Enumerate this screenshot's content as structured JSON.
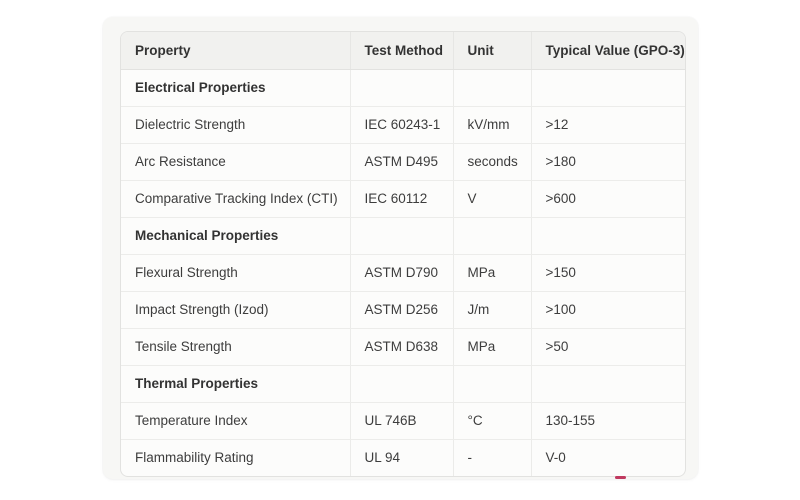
{
  "table": {
    "columns": [
      {
        "id": "property",
        "label": "Property"
      },
      {
        "id": "test_method",
        "label": "Test Method"
      },
      {
        "id": "unit",
        "label": "Unit"
      },
      {
        "id": "value",
        "label": "Typical Value (GPO-3)"
      }
    ],
    "rows": [
      {
        "type": "section",
        "property": "Electrical Properties",
        "test_method": "",
        "unit": "",
        "value": ""
      },
      {
        "type": "data",
        "property": "Dielectric Strength",
        "test_method": "IEC 60243-1",
        "unit": "kV/mm",
        "value": ">12"
      },
      {
        "type": "data",
        "property": "Arc Resistance",
        "test_method": "ASTM D495",
        "unit": "seconds",
        "value": ">180"
      },
      {
        "type": "data",
        "property": "Comparative Tracking Index (CTI)",
        "test_method": "IEC 60112",
        "unit": "V",
        "value": ">600"
      },
      {
        "type": "section",
        "property": "Mechanical Properties",
        "test_method": "",
        "unit": "",
        "value": ""
      },
      {
        "type": "data",
        "property": "Flexural Strength",
        "test_method": "ASTM D790",
        "unit": "MPa",
        "value": ">150"
      },
      {
        "type": "data",
        "property": "Impact Strength (Izod)",
        "test_method": "ASTM D256",
        "unit": "J/m",
        "value": ">100"
      },
      {
        "type": "data",
        "property": "Tensile Strength",
        "test_method": "ASTM D638",
        "unit": "MPa",
        "value": ">50"
      },
      {
        "type": "section",
        "property": "Thermal Properties",
        "test_method": "",
        "unit": "",
        "value": ""
      },
      {
        "type": "data",
        "property": "Temperature Index",
        "test_method": "UL 746B",
        "unit": "°C",
        "value": "130-155"
      },
      {
        "type": "data",
        "property": "Flammability Rating",
        "test_method": "UL 94",
        "unit": "-",
        "value": "V-0"
      }
    ]
  },
  "colors": {
    "page_bg": "#ffffff",
    "card_bg": "#f7f7f5",
    "table_bg": "#fcfcfb",
    "header_bg": "#f1f1ef",
    "outer_border": "#e2e2e0",
    "row_border": "#ececea",
    "text": "#3d3d3d",
    "bold_text": "#333333",
    "artifact_red": "#c0395f"
  }
}
